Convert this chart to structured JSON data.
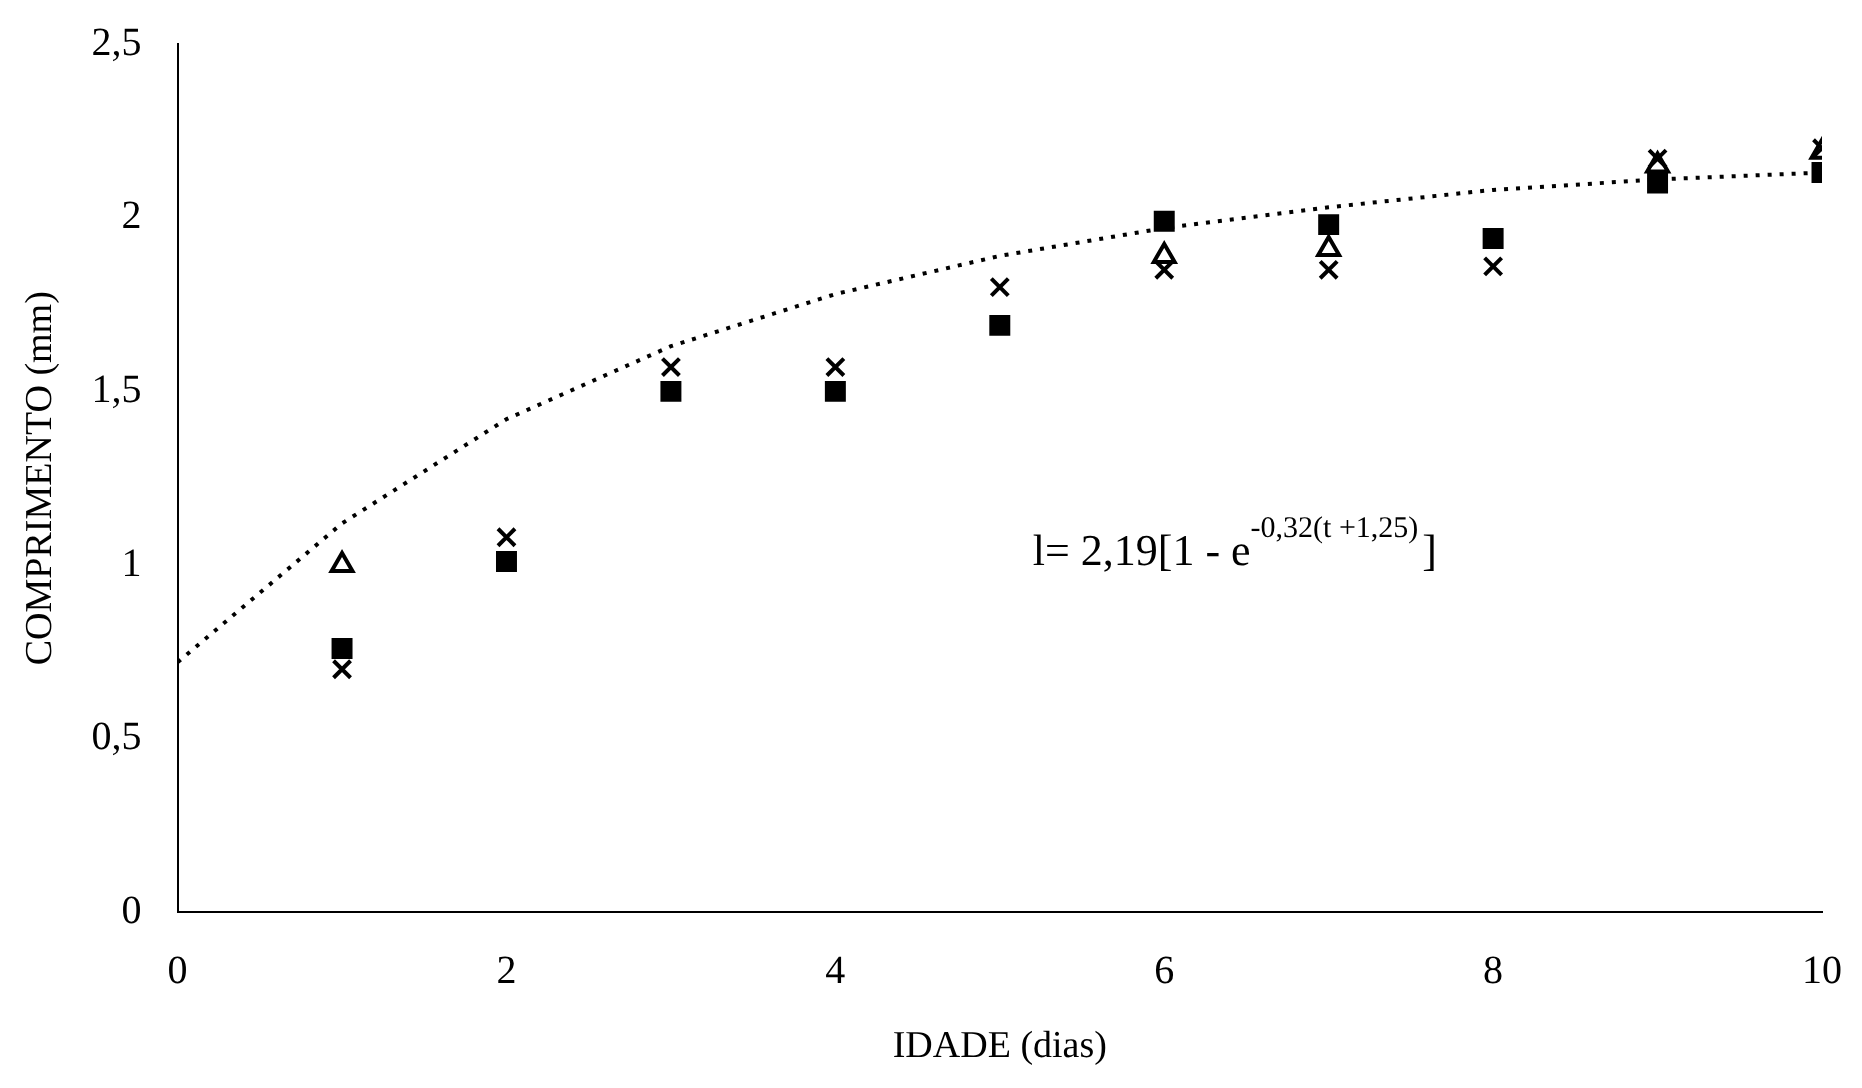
{
  "chart_data": {
    "type": "scatter",
    "xlabel": "IDADE (dias)",
    "ylabel": "COMPRIMENTO (mm)",
    "x": [
      1,
      2,
      3,
      4,
      5,
      6,
      7,
      8,
      9,
      10
    ],
    "series": [
      {
        "color": "#000000",
        "marker": "square",
        "values": [
          0.76,
          1.01,
          1.5,
          1.5,
          1.69,
          1.99,
          1.98,
          1.94,
          2.1,
          2.13
        ]
      },
      {
        "color": "#000000",
        "marker": "cross",
        "values": [
          0.7,
          1.08,
          1.57,
          1.57,
          1.8,
          1.85,
          1.85,
          1.86,
          2.17,
          2.2
        ]
      },
      {
        "color": "#000000",
        "marker": "triangle",
        "values": [
          1.0,
          null,
          null,
          null,
          null,
          1.89,
          1.91,
          null,
          2.15,
          2.19
        ]
      },
      {
        "type": "line",
        "color": "#000000",
        "line_style": "dotted",
        "marker": "none",
        "x": [
          0,
          1,
          2,
          3,
          4,
          5,
          6,
          7,
          8,
          9,
          10
        ],
        "values": [
          0.72,
          1.12,
          1.42,
          1.63,
          1.78,
          1.89,
          1.97,
          2.03,
          2.08,
          2.11,
          2.13
        ]
      }
    ],
    "xlim": [
      0,
      10
    ],
    "xticks": [
      0,
      2,
      4,
      6,
      8,
      10
    ],
    "ylim": [
      0,
      2.5
    ],
    "yticks": [
      0,
      {
        "value": 0.5,
        "label": "0,5"
      },
      1,
      {
        "value": 1.5,
        "label": "1,5"
      },
      2,
      {
        "value": 2.5,
        "label": "2,5"
      }
    ],
    "grid": false,
    "legend": false,
    "annotations": [
      "l= 2,19[1 - e$^{-0,32(t +1,25)}$]"
    ]
  }
}
